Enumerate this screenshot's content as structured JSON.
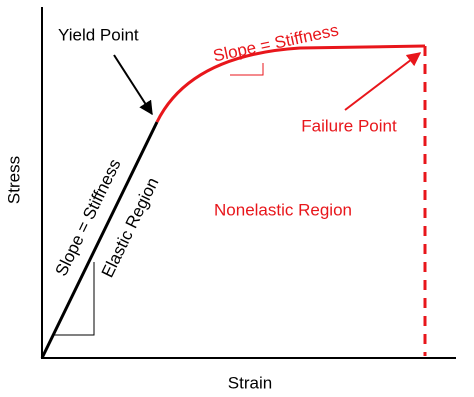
{
  "axes": {
    "y_label": "Stress",
    "x_label": "Strain"
  },
  "annotations": {
    "yield_point": "Yield Point",
    "plastic_slope": "Slope = Stiffness",
    "failure_point": "Failure Point",
    "nonelastic_region": "Nonelastic Region",
    "elastic_slope": "Slope = Stiffness",
    "elastic_region": "Elastic Region"
  }
}
